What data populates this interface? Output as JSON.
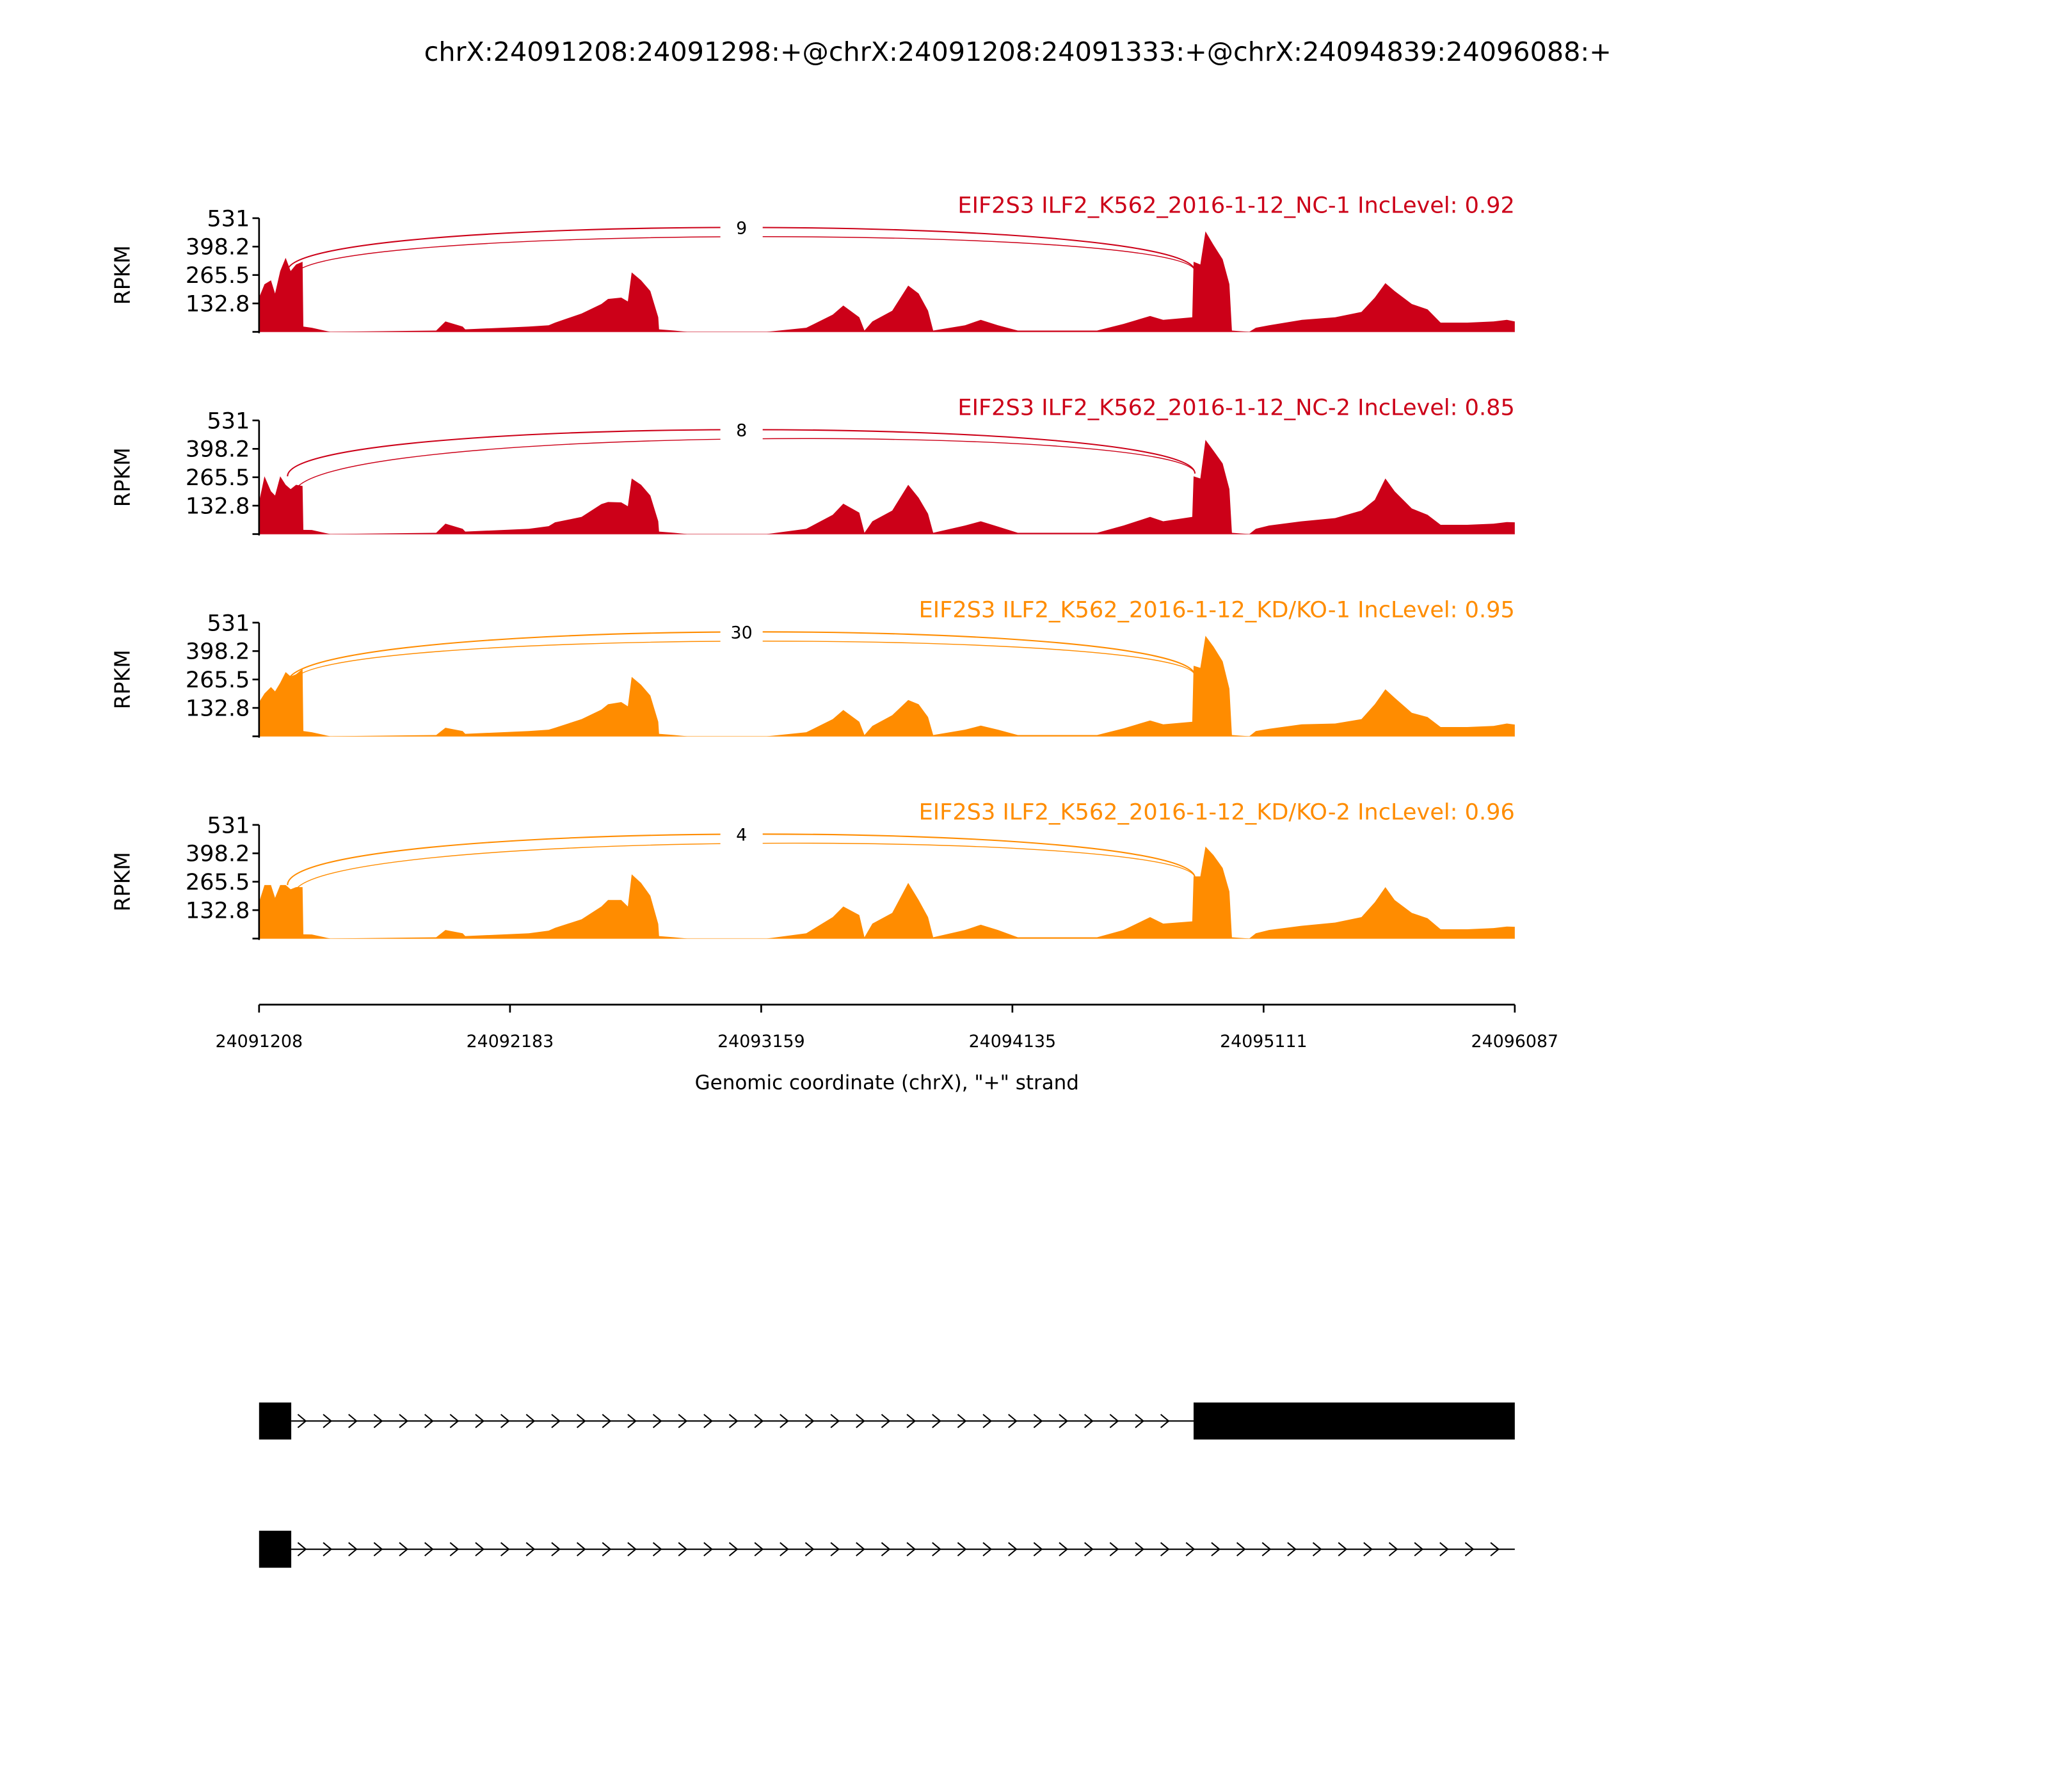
{
  "chart_data": {
    "type": "area",
    "title": "chrX:24091208:24091298:+@chrX:24091208:24091333:+@chrX:24094839:24096088:+",
    "xlabel": "Genomic coordinate (chrX), \"+\" strand",
    "ylabel": "RPKM",
    "xlim": [
      24091208,
      24096087
    ],
    "ylim": [
      0,
      531
    ],
    "yticks": [
      "531",
      "398.2",
      "265.5",
      "132.8"
    ],
    "ytick_values": [
      531,
      398.2,
      265.5,
      132.8,
      0
    ],
    "xticks": [
      "24091208",
      "24092183",
      "24093159",
      "24094135",
      "24095111",
      "24096087"
    ],
    "xtick_values": [
      24091208,
      24092183,
      24093159,
      24094135,
      24095111,
      24096087
    ],
    "coverage_offsets_bp": [
      0,
      21,
      46,
      62,
      82,
      103,
      123,
      144,
      169,
      172,
      205,
      277,
      688,
      724,
      791,
      801,
      945,
      1048,
      1125,
      1150,
      1253,
      1330,
      1356,
      1407,
      1433,
      1448,
      1484,
      1520,
      1551,
      1554,
      1613,
      1664,
      1972,
      2126,
      2229,
      2270,
      2332,
      2352,
      2383,
      2460,
      2522,
      2563,
      2599,
      2619,
      2743,
      2804,
      2871,
      2948,
      3256,
      3359,
      3462,
      3513,
      3626,
      3631,
      3657,
      3677,
      3708,
      3744,
      3770,
      3780,
      3847,
      3873,
      3924,
      4052,
      4181,
      4283,
      4335,
      4376,
      4412,
      4479,
      4540,
      4591,
      4694,
      4797,
      4848,
      4879
    ],
    "series": [
      {
        "name": "EIF2S3 ILF2_K562_2016-1-12_NC-1 IncLevel: 0.92",
        "color": "#cc0018",
        "junction_label": "9",
        "junctions": [
          {
            "from": 24091298,
            "to": 24094839,
            "count": 9
          },
          {
            "from": 24091333,
            "to": 24094839
          }
        ],
        "coverage": [
          160,
          222,
          241,
          179,
          284,
          346,
          284,
          315,
          327,
          25,
          19,
          0,
          6,
          49,
          25,
          12,
          19,
          25,
          31,
          43,
          86,
          130,
          154,
          160,
          142,
          278,
          241,
          191,
          68,
          12,
          6,
          0,
          0,
          19,
          80,
          123,
          68,
          6,
          49,
          99,
          216,
          179,
          99,
          6,
          31,
          56,
          31,
          6,
          6,
          37,
          74,
          56,
          68,
          327,
          315,
          469,
          407,
          339,
          222,
          6,
          0,
          19,
          31,
          56,
          68,
          93,
          160,
          228,
          191,
          130,
          105,
          43,
          43,
          49,
          56,
          49
        ]
      },
      {
        "name": "EIF2S3 ILF2_K562_2016-1-12_NC-2 IncLevel: 0.85",
        "color": "#cc0018",
        "junction_label": "8",
        "junctions": [
          {
            "from": 24091298,
            "to": 24094839
          },
          {
            "from": 24091333,
            "to": 24094839,
            "count": 8
          }
        ],
        "coverage": [
          150,
          270,
          200,
          180,
          270,
          230,
          210,
          230,
          225,
          20,
          19,
          0,
          6,
          49,
          25,
          12,
          19,
          25,
          37,
          55,
          80,
          140,
          150,
          148,
          130,
          260,
          230,
          180,
          60,
          12,
          6,
          0,
          0,
          25,
          90,
          142,
          100,
          6,
          60,
          110,
          230,
          170,
          95,
          6,
          40,
          60,
          35,
          6,
          6,
          40,
          80,
          60,
          80,
          270,
          260,
          440,
          390,
          330,
          210,
          6,
          0,
          25,
          40,
          60,
          75,
          110,
          160,
          260,
          200,
          120,
          90,
          43,
          43,
          49,
          56,
          55
        ]
      },
      {
        "name": "EIF2S3 ILF2_K562_2016-1-12_KD/KO-1 IncLevel: 0.95",
        "color": "#ff8c00",
        "junction_label": "30",
        "junctions": [
          {
            "from": 24091298,
            "to": 24094839
          },
          {
            "from": 24091333,
            "to": 24094839,
            "count": 30
          }
        ],
        "coverage": [
          160,
          200,
          230,
          210,
          250,
          300,
          280,
          290,
          315,
          25,
          19,
          0,
          6,
          40,
          25,
          12,
          19,
          25,
          31,
          40,
          80,
          125,
          150,
          160,
          140,
          278,
          241,
          191,
          68,
          12,
          6,
          0,
          0,
          19,
          80,
          123,
          68,
          6,
          49,
          99,
          170,
          150,
          90,
          6,
          31,
          50,
          31,
          6,
          6,
          37,
          74,
          56,
          68,
          330,
          320,
          470,
          420,
          350,
          222,
          6,
          0,
          25,
          35,
          56,
          60,
          80,
          150,
          220,
          180,
          110,
          90,
          43,
          43,
          49,
          60,
          55
        ]
      },
      {
        "name": "EIF2S3 ILF2_K562_2016-1-12_KD/KO-2 IncLevel: 0.96",
        "color": "#ff8c00",
        "junction_label": "4",
        "junctions": [
          {
            "from": 24091298,
            "to": 24094839
          },
          {
            "from": 24091333,
            "to": 24094839,
            "count": 4
          }
        ],
        "coverage": [
          170,
          250,
          250,
          190,
          250,
          250,
          230,
          240,
          240,
          20,
          19,
          0,
          6,
          40,
          25,
          12,
          19,
          25,
          37,
          50,
          90,
          150,
          180,
          180,
          150,
          300,
          260,
          200,
          68,
          12,
          6,
          0,
          0,
          25,
          100,
          150,
          110,
          6,
          70,
          120,
          260,
          180,
          100,
          6,
          40,
          65,
          40,
          6,
          6,
          40,
          100,
          70,
          80,
          290,
          290,
          430,
          390,
          330,
          220,
          6,
          0,
          25,
          40,
          60,
          75,
          100,
          170,
          240,
          180,
          120,
          95,
          43,
          43,
          49,
          56,
          55
        ]
      }
    ],
    "transcripts": [
      {
        "exons": [
          [
            24091208,
            24091333
          ],
          [
            24094839,
            24096087
          ]
        ]
      },
      {
        "exons": [
          [
            24091208,
            24091333
          ]
        ],
        "end": 24096087
      }
    ]
  }
}
